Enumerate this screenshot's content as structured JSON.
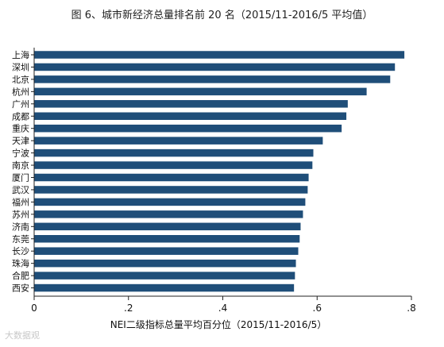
{
  "chart_data": {
    "type": "bar",
    "orientation": "horizontal",
    "title": "图 6、城市新经济总量排名前 20 名（2015/11-2016/5 平均值）",
    "xlabel": "NEI二级指标总量平均百分位（2015/11-2016/5）",
    "ylabel": "",
    "xlim": [
      0,
      0.8
    ],
    "xticks": [
      "0",
      ".2",
      ".4",
      ".6",
      ".8"
    ],
    "grid": false,
    "bar_color": "#1f4e79",
    "categories": [
      "上海",
      "深圳",
      "北京",
      "杭州",
      "广州",
      "成都",
      "重庆",
      "天津",
      "宁波",
      "南京",
      "厦门",
      "武汉",
      "福州",
      "苏州",
      "济南",
      "东莞",
      "长沙",
      "珠海",
      "合肥",
      "西安"
    ],
    "values": [
      0.785,
      0.765,
      0.755,
      0.705,
      0.665,
      0.662,
      0.652,
      0.612,
      0.592,
      0.59,
      0.582,
      0.58,
      0.575,
      0.57,
      0.565,
      0.563,
      0.56,
      0.555,
      0.553,
      0.551
    ]
  },
  "watermark": "大数据观"
}
